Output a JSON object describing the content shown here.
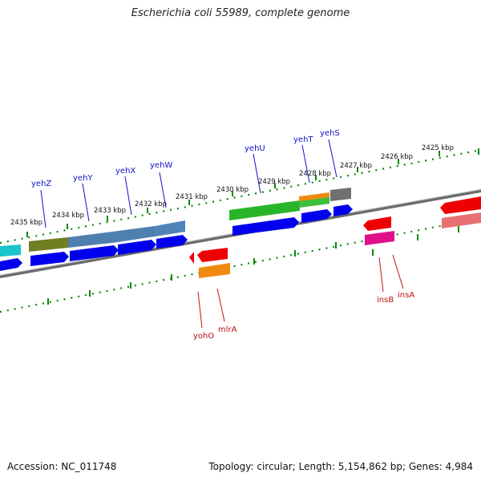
{
  "title": "Escherichia coli 55989, complete genome",
  "footer": {
    "accession": "Accession: NC_011748",
    "summary": "Topology: circular; Length: 5,154,862 bp; Genes: 4,984"
  },
  "colors": {
    "forward_gene_label": "#1010c8",
    "reverse_gene_label": "#c01010",
    "backbone": "#808080",
    "tick": "#0a8a0a",
    "cds": "#0000ee"
  },
  "scale_labels": [
    "2435 kbp",
    "2434 kbp",
    "2433 kbp",
    "2432 kbp",
    "2431 kbp",
    "2430 kbp",
    "2429 kbp",
    "2428 kbp",
    "2427 kbp",
    "2426 kbp",
    "2425 kbp"
  ],
  "forward_gene_labels": [
    "yehZ",
    "yehY",
    "yehX",
    "yehW",
    "yehU",
    "yehT",
    "yehS"
  ],
  "reverse_gene_labels": [
    "yohO",
    "mlrA",
    "insB",
    "insA"
  ]
}
